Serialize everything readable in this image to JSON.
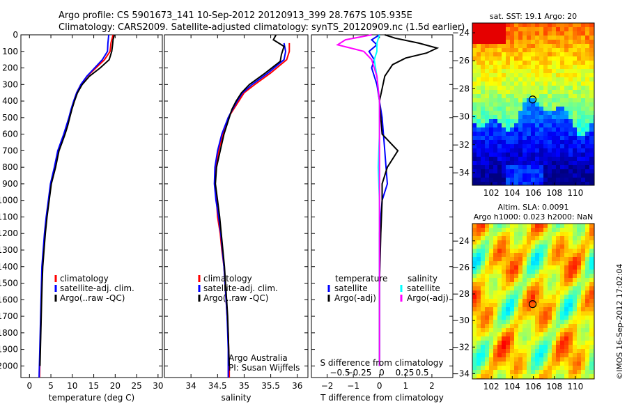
{
  "title_line1": "Argo profile: CS 5901673_141 10-Sep-2012 20120913_399 28.767S 105.935E",
  "title_line2": "Climatology: CARS2009. Satellite-adjusted climatology: synTS_20120909.nc (1.5d earlier)",
  "colors": {
    "climatology": "#ff0000",
    "satellite": "#0000ff",
    "argo": "#000000",
    "sal_satellite": "#00ffff",
    "sal_argo": "#ff00ff"
  },
  "chart_data": [
    {
      "type": "line",
      "id": "temperature",
      "xlabel": "temperature (deg C)",
      "xlim": [
        -2,
        31
      ],
      "xticks": [
        0,
        5,
        10,
        15,
        20,
        25,
        30
      ],
      "ylim": [
        0,
        2070
      ],
      "yticks": [
        0,
        100,
        200,
        300,
        400,
        500,
        600,
        700,
        800,
        900,
        1000,
        1100,
        1200,
        1300,
        1400,
        1500,
        1600,
        1700,
        1800,
        1900,
        2000
      ],
      "legend": [
        "climatology",
        "satellite-adj. clim.",
        "Argo(..raw -QC)"
      ],
      "series": [
        {
          "name": "climatology",
          "color": "#ff0000",
          "points": [
            [
              19.5,
              0
            ],
            [
              19,
              50
            ],
            [
              18.8,
              100
            ],
            [
              17.5,
              150
            ],
            [
              15.5,
              200
            ],
            [
              13.5,
              250
            ],
            [
              12,
              300
            ],
            [
              11,
              350
            ],
            [
              10.4,
              400
            ],
            [
              9.8,
              450
            ],
            [
              9.3,
              500
            ],
            [
              8.8,
              550
            ],
            [
              8.2,
              600
            ],
            [
              7.5,
              650
            ],
            [
              6.8,
              700
            ],
            [
              6,
              800
            ],
            [
              5,
              900
            ],
            [
              4.5,
              1000
            ],
            [
              4,
              1100
            ],
            [
              3.6,
              1200
            ],
            [
              3.3,
              1300
            ],
            [
              3,
              1400
            ],
            [
              2.9,
              1500
            ],
            [
              2.8,
              1600
            ],
            [
              2.7,
              1700
            ],
            [
              2.6,
              1800
            ],
            [
              2.5,
              1900
            ],
            [
              2.4,
              2000
            ],
            [
              2.35,
              2070
            ]
          ]
        },
        {
          "name": "satellite-adj. clim.",
          "color": "#0000ff",
          "points": [
            [
              18.5,
              0
            ],
            [
              18.3,
              50
            ],
            [
              18.2,
              100
            ],
            [
              17,
              150
            ],
            [
              15.2,
              200
            ],
            [
              13.4,
              250
            ],
            [
              12,
              300
            ],
            [
              11,
              350
            ],
            [
              10.3,
              400
            ],
            [
              9.7,
              450
            ],
            [
              9.2,
              500
            ],
            [
              8.6,
              550
            ],
            [
              8,
              600
            ],
            [
              7.3,
              650
            ],
            [
              6.6,
              700
            ],
            [
              5.8,
              800
            ],
            [
              4.9,
              900
            ],
            [
              4.4,
              1000
            ],
            [
              3.9,
              1100
            ],
            [
              3.5,
              1200
            ],
            [
              3.2,
              1300
            ],
            [
              2.9,
              1400
            ],
            [
              2.8,
              1500
            ],
            [
              2.7,
              1600
            ],
            [
              2.6,
              1700
            ],
            [
              2.5,
              1800
            ],
            [
              2.4,
              1900
            ],
            [
              2.3,
              2000
            ],
            [
              2.25,
              2070
            ]
          ]
        },
        {
          "name": "Argo(..raw -QC)",
          "color": "#000000",
          "points": [
            [
              19.8,
              0
            ],
            [
              19.5,
              30
            ],
            [
              19.4,
              60
            ],
            [
              19.2,
              100
            ],
            [
              18.6,
              150
            ],
            [
              16.5,
              200
            ],
            [
              14,
              250
            ],
            [
              12.3,
              300
            ],
            [
              11.2,
              350
            ],
            [
              10.5,
              400
            ],
            [
              9.9,
              450
            ],
            [
              9.4,
              500
            ],
            [
              8.9,
              550
            ],
            [
              8.3,
              600
            ],
            [
              7.6,
              650
            ],
            [
              6.9,
              700
            ],
            [
              6.1,
              800
            ],
            [
              5.1,
              900
            ],
            [
              4.6,
              1000
            ],
            [
              4.1,
              1100
            ],
            [
              3.7,
              1200
            ],
            [
              3.4,
              1300
            ],
            [
              3.1,
              1400
            ],
            [
              2.95,
              1500
            ],
            [
              2.85,
              1600
            ],
            [
              2.75,
              1700
            ],
            [
              2.65,
              1800
            ],
            [
              2.55,
              1900
            ],
            [
              2.45,
              2000
            ]
          ]
        }
      ]
    },
    {
      "type": "line",
      "id": "salinity",
      "xlabel": "salinity",
      "xlim": [
        33.5,
        36.2
      ],
      "xticks": [
        34,
        34.5,
        35,
        35.5,
        36
      ],
      "ylim": [
        0,
        2070
      ],
      "legend": [
        "climatology",
        "satellite-adj. clim.",
        "Argo(..raw -QC)"
      ],
      "annotation": [
        "Argo Australia",
        "PI: Susan Wijffels"
      ],
      "series": [
        {
          "name": "climatology",
          "color": "#ff0000",
          "points": [
            [
              35.85,
              50
            ],
            [
              35.85,
              100
            ],
            [
              35.8,
              150
            ],
            [
              35.5,
              230
            ],
            [
              35.2,
              300
            ],
            [
              35,
              350
            ],
            [
              34.9,
              400
            ],
            [
              34.8,
              450
            ],
            [
              34.7,
              500
            ],
            [
              34.6,
              600
            ],
            [
              34.52,
              700
            ],
            [
              34.47,
              800
            ],
            [
              34.45,
              900
            ],
            [
              34.48,
              1000
            ],
            [
              34.5,
              1100
            ],
            [
              34.55,
              1200
            ],
            [
              34.58,
              1300
            ],
            [
              34.62,
              1400
            ],
            [
              34.64,
              1500
            ],
            [
              34.66,
              1600
            ],
            [
              34.68,
              1700
            ],
            [
              34.7,
              1800
            ],
            [
              34.71,
              1900
            ],
            [
              34.72,
              2000
            ],
            [
              34.72,
              2070
            ]
          ]
        },
        {
          "name": "satellite-adj. clim.",
          "color": "#0000ff",
          "points": [
            [
              35.75,
              50
            ],
            [
              35.78,
              100
            ],
            [
              35.75,
              150
            ],
            [
              35.45,
              230
            ],
            [
              35.15,
              300
            ],
            [
              34.97,
              350
            ],
            [
              34.87,
              400
            ],
            [
              34.78,
              450
            ],
            [
              34.7,
              500
            ],
            [
              34.58,
              600
            ],
            [
              34.5,
              700
            ],
            [
              34.45,
              800
            ],
            [
              34.44,
              900
            ],
            [
              34.47,
              1000
            ],
            [
              34.52,
              1100
            ],
            [
              34.56,
              1200
            ],
            [
              34.59,
              1300
            ],
            [
              34.62,
              1400
            ],
            [
              34.64,
              1500
            ],
            [
              34.66,
              1600
            ],
            [
              34.68,
              1700
            ],
            [
              34.69,
              1800
            ],
            [
              34.7,
              1900
            ],
            [
              34.7,
              2000
            ],
            [
              34.7,
              2070
            ]
          ]
        },
        {
          "name": "Argo(..raw -QC)",
          "color": "#000000",
          "points": [
            [
              35.6,
              0
            ],
            [
              35.55,
              30
            ],
            [
              35.75,
              70
            ],
            [
              35.7,
              120
            ],
            [
              35.68,
              160
            ],
            [
              35.4,
              230
            ],
            [
              35.1,
              300
            ],
            [
              34.95,
              350
            ],
            [
              34.85,
              400
            ],
            [
              34.77,
              450
            ],
            [
              34.72,
              500
            ],
            [
              34.62,
              600
            ],
            [
              34.55,
              700
            ],
            [
              34.48,
              800
            ],
            [
              34.46,
              900
            ],
            [
              34.5,
              1000
            ],
            [
              34.54,
              1100
            ],
            [
              34.57,
              1200
            ],
            [
              34.6,
              1300
            ],
            [
              34.63,
              1400
            ],
            [
              34.65,
              1500
            ],
            [
              34.67,
              1600
            ],
            [
              34.69,
              1700
            ],
            [
              34.7,
              1800
            ],
            [
              34.71,
              1900
            ],
            [
              34.72,
              2000
            ]
          ]
        }
      ]
    },
    {
      "type": "line",
      "id": "difference",
      "xlabel": "T difference from climatology",
      "xlabel_top": "S difference from climatology",
      "xlim": [
        -2.6,
        2.8
      ],
      "xticks": [
        -2,
        -1,
        0,
        1,
        2
      ],
      "xticks_top": [
        "−0.5",
        "−0.25",
        "0",
        "0.25",
        "0.5"
      ],
      "ylim": [
        0,
        2070
      ],
      "legend_left_title": "temperature",
      "legend_right_title": "salinity",
      "legend": [
        "satellite",
        "Argo(-adj)",
        "satellite",
        "Argo(-adj)"
      ],
      "series": [
        {
          "name": "T satellite",
          "color": "#0000ff",
          "points": [
            [
              0,
              0
            ],
            [
              -0.3,
              30
            ],
            [
              -0.1,
              60
            ],
            [
              -0.4,
              100
            ],
            [
              -0.2,
              150
            ],
            [
              -0.3,
              200
            ],
            [
              -0.1,
              300
            ],
            [
              0,
              400
            ],
            [
              0.1,
              500
            ],
            [
              0.15,
              600
            ],
            [
              0.2,
              700
            ],
            [
              0.25,
              800
            ],
            [
              0.3,
              900
            ],
            [
              0.1,
              1000
            ],
            [
              0.05,
              1100
            ],
            [
              0,
              1200
            ],
            [
              0,
              1500
            ],
            [
              0,
              2000
            ]
          ]
        },
        {
          "name": "T Argo(-adj)",
          "color": "#000000",
          "points": [
            [
              0.2,
              0
            ],
            [
              0.6,
              20
            ],
            [
              1.5,
              50
            ],
            [
              2.2,
              80
            ],
            [
              1.8,
              110
            ],
            [
              1,
              140
            ],
            [
              0.5,
              180
            ],
            [
              0.2,
              250
            ],
            [
              0,
              400
            ],
            [
              0.1,
              600
            ],
            [
              0.7,
              700
            ],
            [
              0.3,
              800
            ],
            [
              0.1,
              900
            ],
            [
              0.1,
              1000
            ],
            [
              0.05,
              1200
            ],
            [
              0,
              1500
            ],
            [
              0,
              2000
            ]
          ]
        },
        {
          "name": "S satellite",
          "color": "#00ffff",
          "points": [
            [
              0,
              0
            ],
            [
              -0.1,
              50
            ],
            [
              -0.1,
              100
            ],
            [
              -0.2,
              150
            ],
            [
              -0.1,
              250
            ],
            [
              0,
              400
            ],
            [
              0,
              600
            ],
            [
              -0.05,
              800
            ],
            [
              0,
              1000
            ],
            [
              0,
              1500
            ],
            [
              0,
              2000
            ]
          ]
        },
        {
          "name": "S Argo(-adj)",
          "color": "#ff00ff",
          "points": [
            [
              -0.3,
              0
            ],
            [
              -1.3,
              30
            ],
            [
              -1.6,
              60
            ],
            [
              -0.6,
              100
            ],
            [
              -0.3,
              150
            ],
            [
              -0.1,
              250
            ],
            [
              0,
              400
            ],
            [
              0,
              600
            ],
            [
              0,
              800
            ],
            [
              0,
              1000
            ],
            [
              0,
              1500
            ],
            [
              0,
              2000
            ]
          ]
        }
      ]
    }
  ],
  "maps": [
    {
      "id": "sst-map",
      "title": "sat. SST: 19.1 Argo: 20",
      "yticks": [
        -24,
        -26,
        -28,
        -30,
        -32,
        -34
      ],
      "ylim": [
        -23.3,
        -34.9
      ],
      "xticks": [
        102,
        104,
        106,
        108,
        110
      ],
      "xlim": [
        100.2,
        111.8
      ],
      "marker": [
        105.935,
        -28.767
      ]
    },
    {
      "id": "sla-map",
      "title_line1": "Altim. SLA: 0.0091",
      "title_line2": "Argo h1000: 0.023 h2000: NaN",
      "yticks": [
        -24,
        -26,
        -28,
        -30,
        -32,
        -34
      ],
      "ylim": [
        -22.7,
        -34.4
      ],
      "xticks": [
        102,
        104,
        106,
        108,
        110
      ],
      "xlim": [
        100.2,
        111.8
      ],
      "marker": [
        105.935,
        -28.767
      ]
    }
  ],
  "watermark": "©IMOS 16-Sep-2012 17:02:04"
}
